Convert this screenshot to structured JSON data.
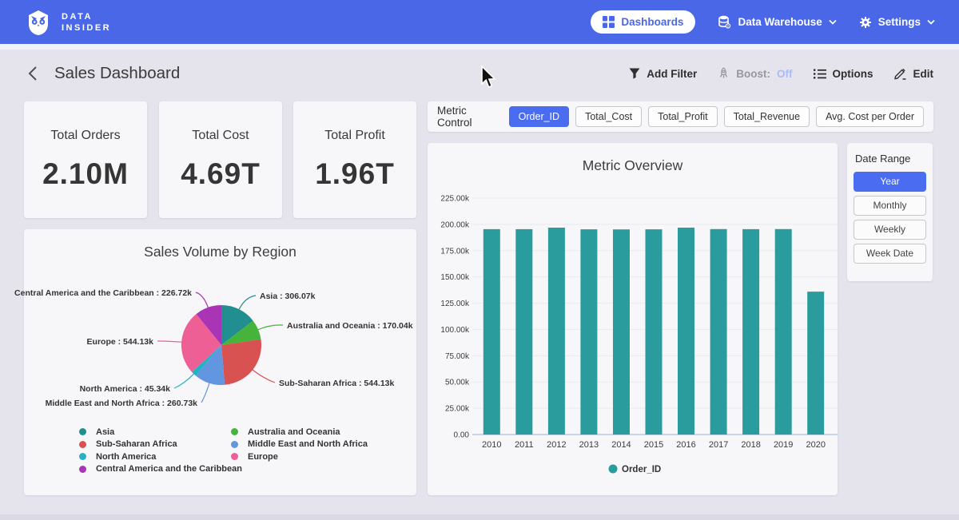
{
  "navbar": {
    "brand_line1": "DATA",
    "brand_line2": "INSIDER",
    "items": [
      {
        "label": "Dashboards"
      },
      {
        "label": "Data Warehouse"
      },
      {
        "label": "Settings"
      }
    ]
  },
  "header": {
    "title": "Sales Dashboard",
    "actions": {
      "add_filter": "Add Filter",
      "boost_label": "Boost:",
      "boost_value": "Off",
      "options": "Options",
      "edit": "Edit"
    }
  },
  "kpis": [
    {
      "label": "Total Orders",
      "value": "2.10M"
    },
    {
      "label": "Total Cost",
      "value": "4.69T"
    },
    {
      "label": "Total Profit",
      "value": "1.96T"
    }
  ],
  "metric_control": {
    "label": "Metric Control",
    "chips": [
      {
        "label": "Order_ID",
        "selected": true
      },
      {
        "label": "Total_Cost",
        "selected": false
      },
      {
        "label": "Total_Profit",
        "selected": false
      },
      {
        "label": "Total_Revenue",
        "selected": false
      },
      {
        "label": "Avg. Cost per Order",
        "selected": false
      }
    ]
  },
  "date_range": {
    "title": "Date Range",
    "options": [
      {
        "label": "Year",
        "selected": true
      },
      {
        "label": "Monthly",
        "selected": false
      },
      {
        "label": "Weekly",
        "selected": false
      },
      {
        "label": "Week Date",
        "selected": false
      }
    ]
  },
  "chart_data": [
    {
      "type": "pie",
      "title": "Sales Volume by Region",
      "unit": "k",
      "slices": [
        {
          "name": "Asia",
          "value": 306.07,
          "label": "Asia : 306.07k",
          "color": "#218f8f"
        },
        {
          "name": "Australia and Oceania",
          "value": 170.04,
          "label": "Australia and Oceania : 170.04k",
          "color": "#46b33a"
        },
        {
          "name": "Sub-Saharan Africa",
          "value": 544.13,
          "label": "Sub-Saharan Africa : 544.13k",
          "color": "#d95252"
        },
        {
          "name": "Middle East and North Africa",
          "value": 260.73,
          "label": "Middle East and North Africa : 260.73k",
          "color": "#6296e0"
        },
        {
          "name": "North America",
          "value": 45.34,
          "label": "North America : 45.34k",
          "color": "#25b2c7"
        },
        {
          "name": "Europe",
          "value": 544.13,
          "label": "Europe : 544.13k",
          "color": "#ee5f95"
        },
        {
          "name": "Central America and the Caribbean",
          "value": 226.72,
          "label": "Central America and the Caribbean : 226.72k",
          "color": "#a934b5"
        }
      ],
      "legend_position": "bottom",
      "legend_columns": [
        [
          "Asia",
          "Sub-Saharan Africa",
          "North America",
          "Central America and the Caribbean"
        ],
        [
          "Australia and Oceania",
          "Middle East and North Africa",
          "Europe"
        ]
      ]
    },
    {
      "type": "bar",
      "title": "Metric Overview",
      "categories": [
        "2010",
        "2011",
        "2012",
        "2013",
        "2014",
        "2015",
        "2016",
        "2017",
        "2018",
        "2019",
        "2020"
      ],
      "series": [
        {
          "name": "Order_ID",
          "color": "#2b9c9e",
          "values": [
            195.4,
            195.4,
            196.9,
            195.3,
            195.2,
            195.3,
            196.9,
            195.5,
            195.4,
            195.5,
            136.0
          ]
        }
      ],
      "unit": "k",
      "ylim": [
        0,
        225
      ],
      "ytick_step": 25,
      "ytick_labels": [
        "0.00",
        "25.00k",
        "50.00k",
        "75.00k",
        "100.00k",
        "125.00k",
        "150.00k",
        "175.00k",
        "200.00k",
        "225.00k"
      ],
      "legend": [
        "Order_ID"
      ],
      "legend_position": "bottom",
      "grid": true
    }
  ],
  "colors": {
    "navbar": "#4a67e8",
    "accent_selected": "#4a6cf0",
    "page_bg": "#e5e4ed",
    "card_bg": "#f7f6f8",
    "bar_teal": "#2b9c9e"
  }
}
